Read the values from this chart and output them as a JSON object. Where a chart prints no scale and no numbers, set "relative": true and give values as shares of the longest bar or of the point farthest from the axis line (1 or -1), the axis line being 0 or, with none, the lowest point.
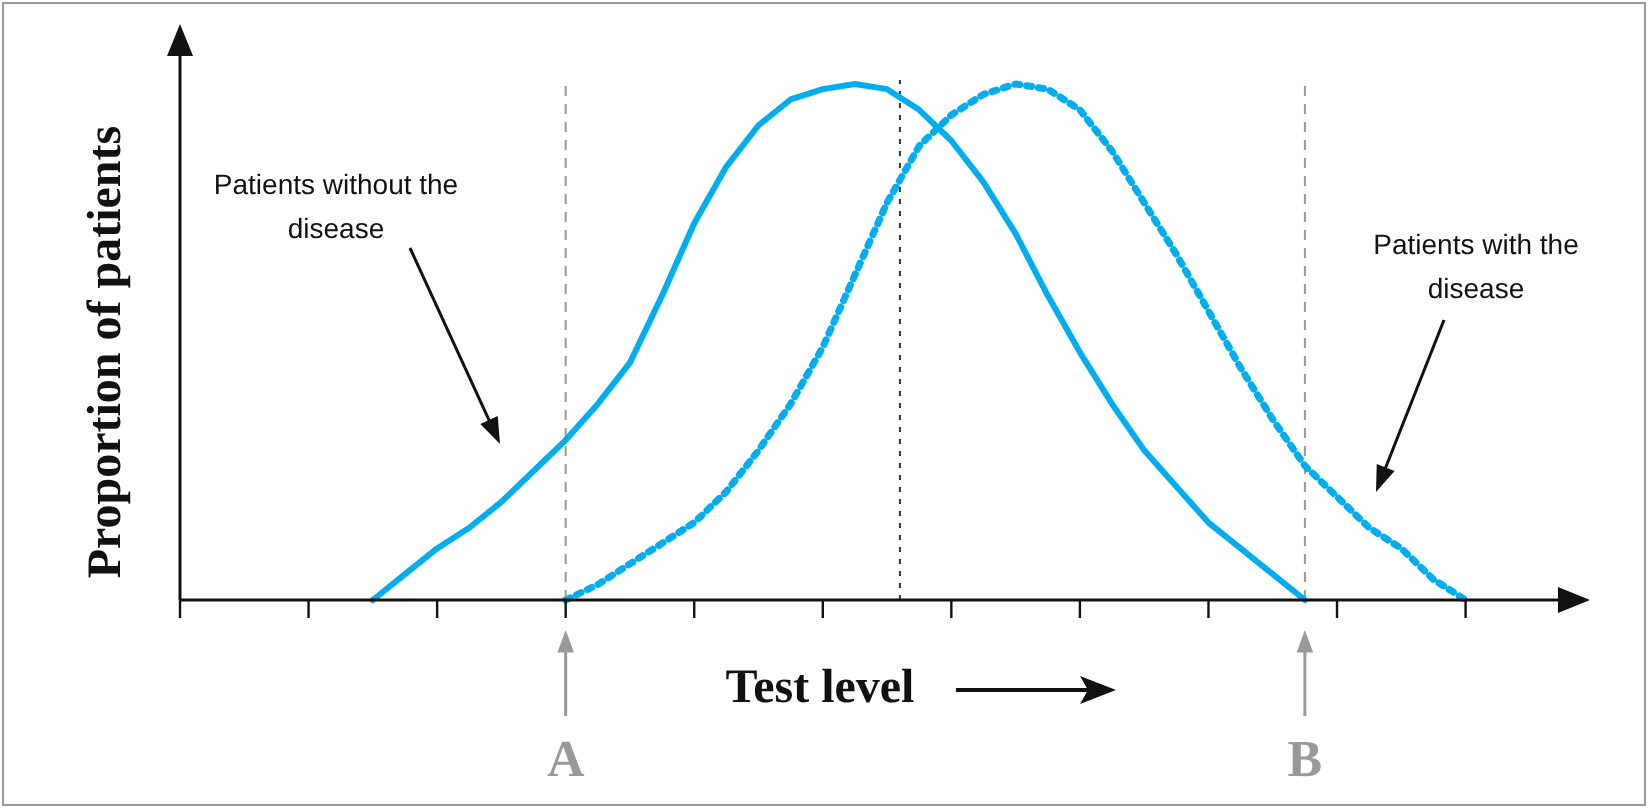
{
  "chart_data": {
    "type": "line",
    "relative": true,
    "xlabel": "Test level",
    "ylabel": "Proportion of patients",
    "categories": [
      null,
      null,
      null,
      null,
      null,
      null,
      null,
      null,
      null,
      null,
      null,
      null,
      null,
      null,
      null,
      null,
      null,
      null,
      null,
      null,
      null,
      null,
      null,
      null,
      null,
      null,
      null,
      null,
      null,
      null,
      null,
      null,
      null,
      null,
      null,
      null,
      null,
      null,
      null,
      null,
      null,
      null,
      null,
      null
    ],
    "series": [
      {
        "color": "#00aeef",
        "line_style": "solid",
        "values": [
          null,
          null,
          null,
          null,
          null,
          null,
          0,
          0.05,
          0.1,
          0.14,
          0.19,
          0.25,
          0.31,
          0.38,
          0.46,
          0.59,
          0.73,
          0.84,
          0.92,
          0.97,
          0.99,
          1,
          0.99,
          0.95,
          0.89,
          0.81,
          0.71,
          0.59,
          0.48,
          0.38,
          0.29,
          0.22,
          0.15,
          0.1,
          0.05,
          0,
          null,
          null,
          null,
          null,
          null,
          null,
          null,
          null
        ]
      },
      {
        "color": "#00aeef",
        "line_style": "dotted",
        "values": [
          null,
          null,
          null,
          null,
          null,
          null,
          null,
          null,
          null,
          null,
          null,
          null,
          0,
          0.03,
          0.07,
          0.11,
          0.15,
          0.21,
          0.29,
          0.38,
          0.49,
          0.63,
          0.77,
          0.88,
          0.94,
          0.98,
          1,
          0.99,
          0.95,
          0.87,
          0.77,
          0.67,
          0.56,
          0.45,
          0.35,
          0.26,
          0.2,
          0.14,
          0.1,
          0.04,
          0,
          null,
          null,
          null
        ]
      }
    ],
    "annotations": [
      "Patients without the disease",
      "Patients with the disease",
      "A",
      "B"
    ],
    "marker": "none",
    "grid": false,
    "legend": false
  }
}
